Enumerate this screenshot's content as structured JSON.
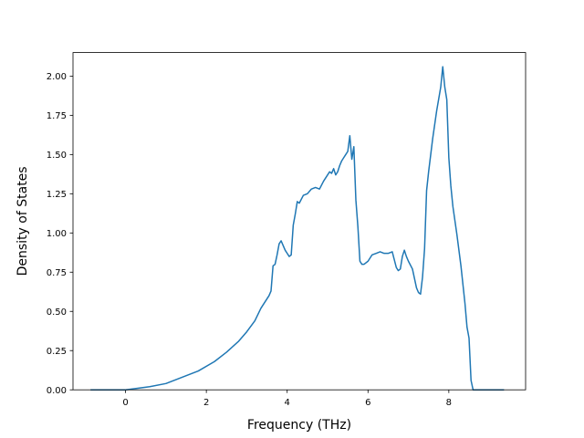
{
  "chart_data": {
    "type": "line",
    "title": "",
    "xlabel": "Frequency (THz)",
    "ylabel": "Density of States",
    "xlim": [
      -1.3,
      9.9
    ],
    "ylim": [
      0,
      2.15
    ],
    "xticks": [
      0,
      2,
      4,
      6,
      8
    ],
    "xtick_labels": [
      "0",
      "2",
      "4",
      "6",
      "8"
    ],
    "yticks": [
      0,
      0.25,
      0.5,
      0.75,
      1.0,
      1.25,
      1.5,
      1.75,
      2.0
    ],
    "ytick_labels": [
      "0.00",
      "0.25",
      "0.50",
      "0.75",
      "1.00",
      "1.25",
      "1.50",
      "1.75",
      "2.00"
    ],
    "grid": false,
    "line_color": "#1f77b4",
    "series": [
      {
        "x": [
          -0.85,
          -0.5,
          0,
          0.3,
          0.6,
          1.0,
          1.4,
          1.8,
          2.2,
          2.5,
          2.8,
          3.0,
          3.2,
          3.35,
          3.45,
          3.55,
          3.6,
          3.65,
          3.7,
          3.75,
          3.8,
          3.85,
          3.9,
          3.95,
          4.0,
          4.05,
          4.1,
          4.15,
          4.2,
          4.25,
          4.3,
          4.4,
          4.5,
          4.6,
          4.7,
          4.8,
          4.9,
          5.0,
          5.05,
          5.1,
          5.15,
          5.2,
          5.25,
          5.3,
          5.35,
          5.4,
          5.45,
          5.5,
          5.55,
          5.6,
          5.65,
          5.7,
          5.75,
          5.8,
          5.85,
          5.9,
          6.0,
          6.1,
          6.2,
          6.3,
          6.4,
          6.5,
          6.6,
          6.7,
          6.75,
          6.8,
          6.85,
          6.9,
          6.95,
          7.0,
          7.1,
          7.2,
          7.25,
          7.3,
          7.35,
          7.4,
          7.45,
          7.5,
          7.6,
          7.7,
          7.8,
          7.85,
          7.9,
          7.95,
          8.0,
          8.05,
          8.1,
          8.2,
          8.3,
          8.4,
          8.45,
          8.5,
          8.55,
          8.6,
          8.8,
          9.35
        ],
        "y": [
          0,
          0,
          0,
          0.01,
          0.02,
          0.04,
          0.08,
          0.12,
          0.18,
          0.24,
          0.31,
          0.37,
          0.44,
          0.52,
          0.56,
          0.6,
          0.63,
          0.79,
          0.8,
          0.86,
          0.93,
          0.95,
          0.92,
          0.89,
          0.87,
          0.85,
          0.86,
          1.05,
          1.12,
          1.2,
          1.19,
          1.24,
          1.25,
          1.28,
          1.29,
          1.28,
          1.33,
          1.37,
          1.39,
          1.38,
          1.41,
          1.37,
          1.39,
          1.43,
          1.46,
          1.48,
          1.5,
          1.52,
          1.62,
          1.47,
          1.55,
          1.21,
          1.04,
          0.82,
          0.8,
          0.8,
          0.82,
          0.86,
          0.87,
          0.88,
          0.87,
          0.87,
          0.88,
          0.78,
          0.76,
          0.77,
          0.85,
          0.89,
          0.85,
          0.82,
          0.77,
          0.65,
          0.62,
          0.61,
          0.72,
          0.9,
          1.27,
          1.39,
          1.6,
          1.78,
          1.93,
          2.06,
          1.93,
          1.85,
          1.48,
          1.3,
          1.17,
          0.99,
          0.79,
          0.55,
          0.4,
          0.33,
          0.06,
          0,
          0,
          0
        ]
      }
    ]
  }
}
